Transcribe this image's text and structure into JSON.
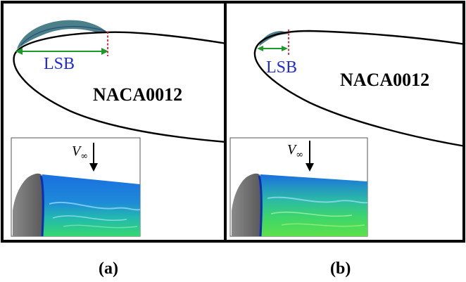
{
  "panels": [
    {
      "id": "a",
      "airfoil_label": "NACA0012",
      "bubble_label": "LSB",
      "caption": "(a)",
      "inset_freestream_label": "V",
      "inset_freestream_subscript": "∞"
    },
    {
      "id": "b",
      "airfoil_label": "NACA0012",
      "bubble_label": "LSB",
      "caption": "(b)",
      "inset_freestream_label": "V",
      "inset_freestream_subscript": "∞"
    }
  ],
  "colors": {
    "bubble_arrow": "#1c9a2a",
    "bubble_text": "#1f2bd6",
    "reattachment_marker": "#e0202a",
    "surface_blue": "#1877e6",
    "surface_green": "#3ddc5a",
    "outline": "#000000"
  }
}
